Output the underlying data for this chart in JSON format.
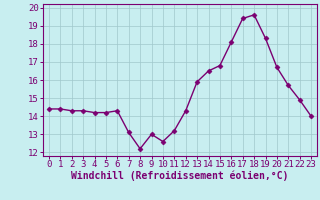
{
  "x": [
    0,
    1,
    2,
    3,
    4,
    5,
    6,
    7,
    8,
    9,
    10,
    11,
    12,
    13,
    14,
    15,
    16,
    17,
    18,
    19,
    20,
    21,
    22,
    23
  ],
  "y": [
    14.4,
    14.4,
    14.3,
    14.3,
    14.2,
    14.2,
    14.3,
    13.1,
    12.2,
    13.0,
    12.6,
    13.2,
    14.3,
    15.9,
    16.5,
    16.8,
    18.1,
    19.4,
    19.6,
    18.3,
    16.7,
    15.7,
    14.9,
    14.0
  ],
  "line_color": "#7b0071",
  "marker": "D",
  "marker_size": 2.5,
  "bg_color": "#c8eef0",
  "grid_color": "#a0c8cc",
  "xlabel": "Windchill (Refroidissement éolien,°C)",
  "xlim": [
    -0.5,
    23.5
  ],
  "ylim": [
    11.8,
    20.2
  ],
  "yticks": [
    12,
    13,
    14,
    15,
    16,
    17,
    18,
    19,
    20
  ],
  "xticks": [
    0,
    1,
    2,
    3,
    4,
    5,
    6,
    7,
    8,
    9,
    10,
    11,
    12,
    13,
    14,
    15,
    16,
    17,
    18,
    19,
    20,
    21,
    22,
    23
  ],
  "xlabel_fontsize": 7.0,
  "tick_fontsize": 6.5,
  "line_width": 1.0
}
